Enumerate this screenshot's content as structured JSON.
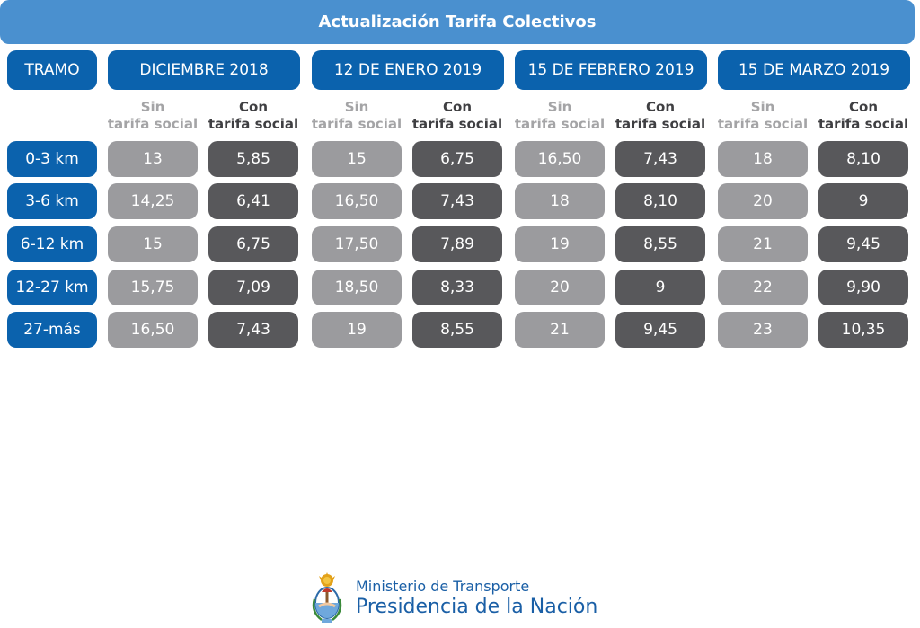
{
  "title": "Actualización Tarifa Colectivos",
  "tramo_label": "TRAMO",
  "chart_data": {
    "type": "table",
    "title": "Actualización Tarifa Colectivos",
    "periods": [
      "DICIEMBRE 2018",
      "12 DE ENERO 2019",
      "15 DE FEBRERO 2019",
      "15 DE MARZO 2019"
    ],
    "sub_columns": [
      {
        "line1": "Sin",
        "line2": "tarifa social"
      },
      {
        "line1": "Con",
        "line2": "tarifa social"
      }
    ],
    "rows": [
      {
        "tramo": "0-3 km",
        "values": [
          "13",
          "5,85",
          "15",
          "6,75",
          "16,50",
          "7,43",
          "18",
          "8,10"
        ]
      },
      {
        "tramo": "3-6 km",
        "values": [
          "14,25",
          "6,41",
          "16,50",
          "7,43",
          "18",
          "8,10",
          "20",
          "9"
        ]
      },
      {
        "tramo": "6-12 km",
        "values": [
          "15",
          "6,75",
          "17,50",
          "7,89",
          "19",
          "8,55",
          "21",
          "9,45"
        ]
      },
      {
        "tramo": "12-27 km",
        "values": [
          "15,75",
          "7,09",
          "18,50",
          "8,33",
          "20",
          "9",
          "22",
          "9,90"
        ]
      },
      {
        "tramo": "27-más",
        "values": [
          "16,50",
          "7,43",
          "19",
          "8,55",
          "21",
          "9,45",
          "23",
          "10,35"
        ]
      }
    ]
  },
  "colors": {
    "title_bar": "#4a90cf",
    "header_pill": "#0b62ad",
    "sin_cell": "#9b9b9e",
    "con_cell": "#58585b"
  },
  "footer": {
    "ministry": "Ministerio de Transporte",
    "presidencia": "Presidencia de la Nación",
    "crest_icon": "argentina-coat-of-arms-icon"
  }
}
